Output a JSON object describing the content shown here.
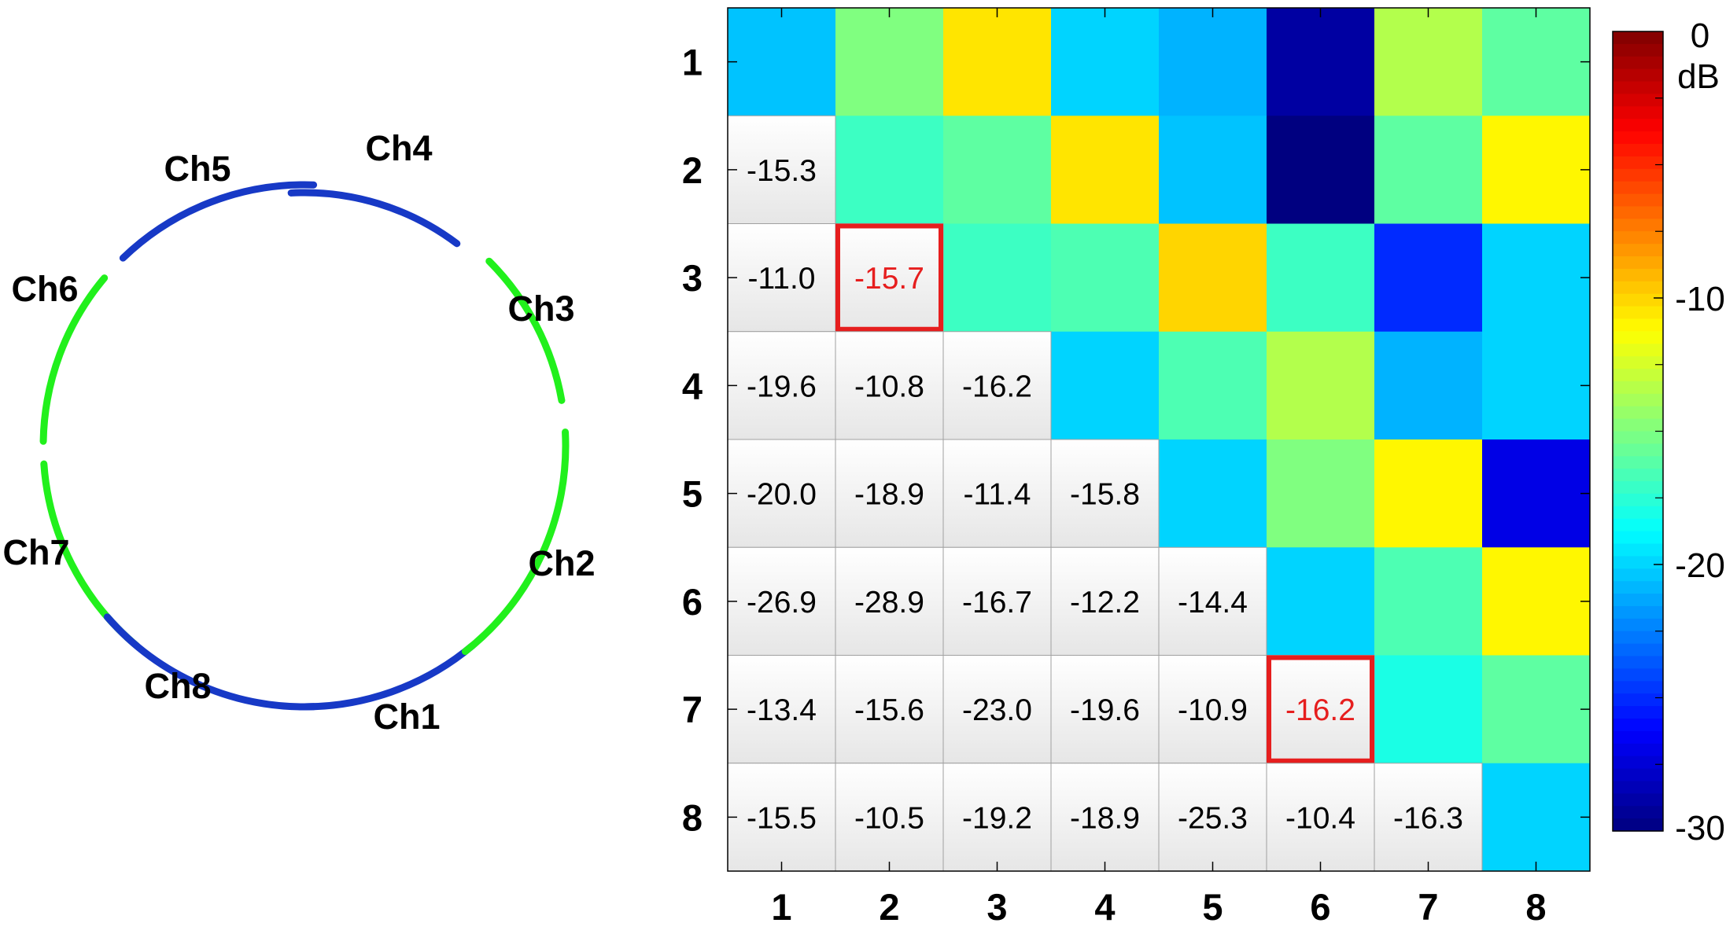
{
  "ring": {
    "channels": [
      {
        "name": "Ch1",
        "color": "#1739c6"
      },
      {
        "name": "Ch2",
        "color": "#21f01c"
      },
      {
        "name": "Ch3",
        "color": "#21f01c"
      },
      {
        "name": "Ch4",
        "color": "#1739c6"
      },
      {
        "name": "Ch5",
        "color": "#1739c6"
      },
      {
        "name": "Ch6",
        "color": "#21f01c"
      },
      {
        "name": "Ch7",
        "color": "#21f01c"
      },
      {
        "name": "Ch8",
        "color": "#1739c6"
      }
    ]
  },
  "chart_data": {
    "type": "heatmap",
    "rows": [
      "1",
      "2",
      "3",
      "4",
      "5",
      "6",
      "7",
      "8"
    ],
    "columns": [
      "1",
      "2",
      "3",
      "4",
      "5",
      "6",
      "7",
      "8"
    ],
    "upper_triangle_db": [
      [
        -20.5,
        -15.0,
        -10.5,
        -20.0,
        -21.0,
        -29.0,
        -13.5,
        -16.0
      ],
      [
        null,
        -17.0,
        -16.0,
        -10.5,
        -20.5,
        -30.0,
        -16.0,
        -11.0
      ],
      [
        null,
        null,
        -17.0,
        -16.5,
        -10.0,
        -17.0,
        -25.0,
        -20.0
      ],
      [
        null,
        null,
        null,
        -20.0,
        -16.5,
        -13.5,
        -21.0,
        -20.0
      ],
      [
        null,
        null,
        null,
        null,
        -20.0,
        -15.0,
        -11.0,
        -27.0
      ],
      [
        null,
        null,
        null,
        null,
        null,
        -20.0,
        -16.5,
        -11.0
      ],
      [
        null,
        null,
        null,
        null,
        null,
        null,
        -18.0,
        -16.0
      ],
      [
        null,
        null,
        null,
        null,
        null,
        null,
        null,
        -20.0
      ]
    ],
    "lower_triangle_labels": [
      {
        "row": 2,
        "col": 1,
        "text": "-15.3"
      },
      {
        "row": 3,
        "col": 1,
        "text": "-11.0"
      },
      {
        "row": 3,
        "col": 2,
        "text": "-15.7",
        "highlight": true
      },
      {
        "row": 4,
        "col": 1,
        "text": "-19.6"
      },
      {
        "row": 4,
        "col": 2,
        "text": "-10.8"
      },
      {
        "row": 4,
        "col": 3,
        "text": "-16.2"
      },
      {
        "row": 5,
        "col": 1,
        "text": "-20.0"
      },
      {
        "row": 5,
        "col": 2,
        "text": "-18.9"
      },
      {
        "row": 5,
        "col": 3,
        "text": "-11.4"
      },
      {
        "row": 5,
        "col": 4,
        "text": "-15.8"
      },
      {
        "row": 6,
        "col": 1,
        "text": "-26.9"
      },
      {
        "row": 6,
        "col": 2,
        "text": "-28.9"
      },
      {
        "row": 6,
        "col": 3,
        "text": "-16.7"
      },
      {
        "row": 6,
        "col": 4,
        "text": "-12.2"
      },
      {
        "row": 6,
        "col": 5,
        "text": "-14.4"
      },
      {
        "row": 7,
        "col": 1,
        "text": "-13.4"
      },
      {
        "row": 7,
        "col": 2,
        "text": "-15.6"
      },
      {
        "row": 7,
        "col": 3,
        "text": "-23.0"
      },
      {
        "row": 7,
        "col": 4,
        "text": "-19.6"
      },
      {
        "row": 7,
        "col": 5,
        "text": "-10.9"
      },
      {
        "row": 7,
        "col": 6,
        "text": "-16.2",
        "highlight": true
      },
      {
        "row": 8,
        "col": 1,
        "text": "-15.5"
      },
      {
        "row": 8,
        "col": 2,
        "text": "-10.5"
      },
      {
        "row": 8,
        "col": 3,
        "text": "-19.2"
      },
      {
        "row": 8,
        "col": 4,
        "text": "-18.9"
      },
      {
        "row": 8,
        "col": 5,
        "text": "-25.3"
      },
      {
        "row": 8,
        "col": 6,
        "text": "-10.4"
      },
      {
        "row": 8,
        "col": 7,
        "text": "-16.3"
      }
    ],
    "highlight_color": "#e61e1e",
    "colorbar": {
      "colormap": "jet",
      "range": [
        -30,
        0
      ],
      "ticks": [
        "0",
        "-10",
        "-20",
        "-30"
      ],
      "unit": "dB"
    }
  }
}
